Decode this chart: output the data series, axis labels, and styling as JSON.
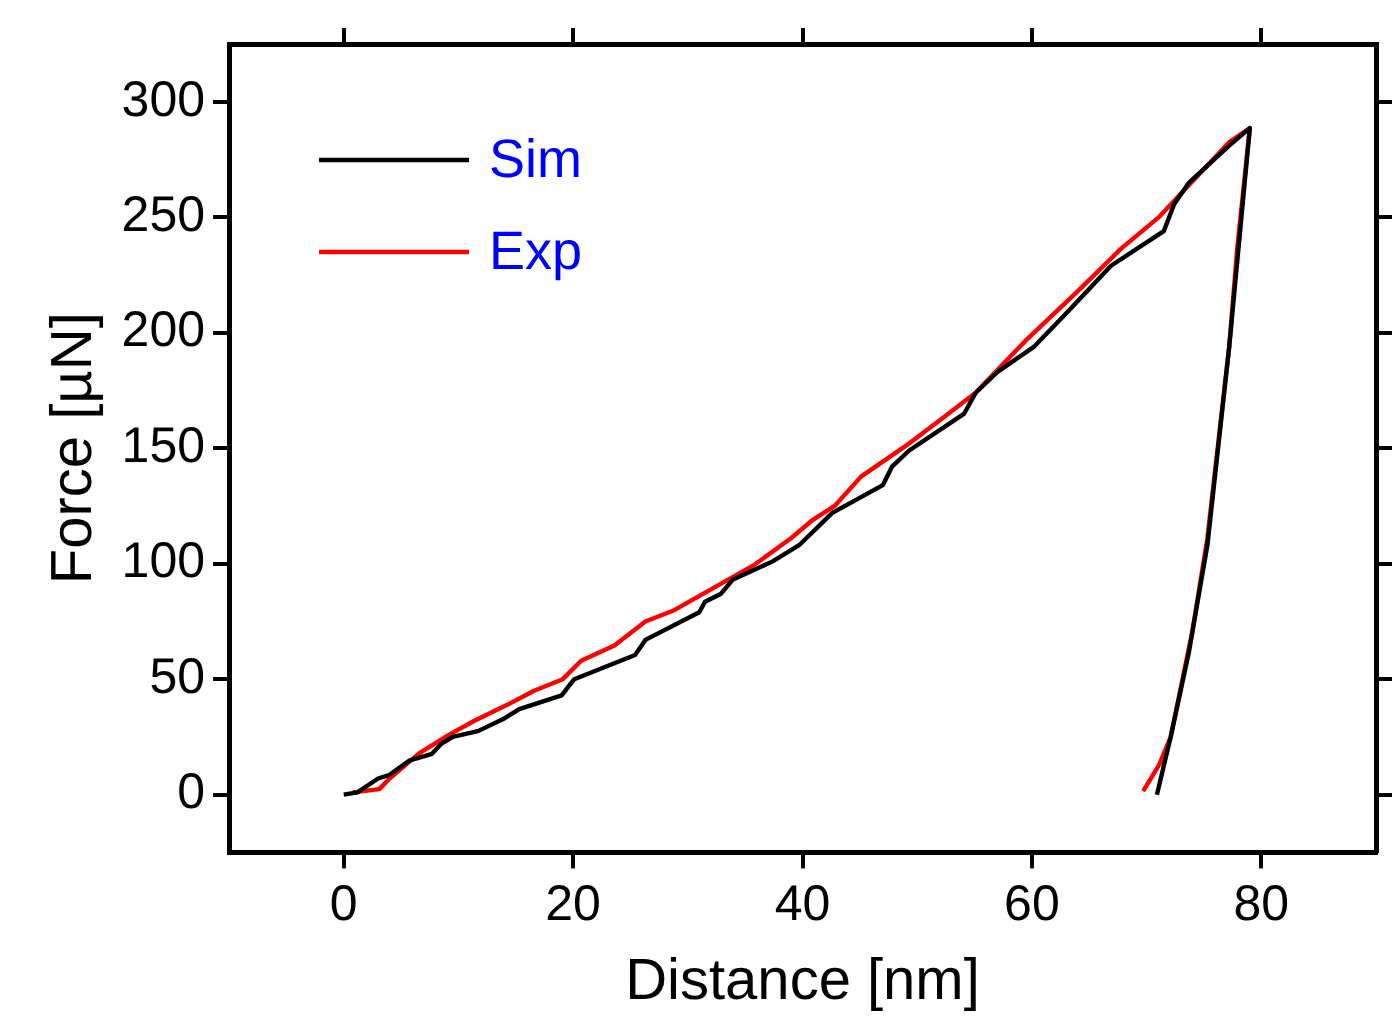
{
  "chart_data": {
    "type": "line",
    "xlabel": "Distance [nm]",
    "ylabel": "Force [µN]",
    "xlim": [
      -10,
      90
    ],
    "ylim": [
      -25,
      325
    ],
    "xticks": [
      0,
      20,
      40,
      60,
      80
    ],
    "yticks": [
      0,
      50,
      100,
      150,
      200,
      250,
      300
    ],
    "grid": false,
    "legend": "top left",
    "marker": "none",
    "line_style": "solid",
    "series": [
      {
        "name": "Sim",
        "color": "#000000",
        "x": [
          0,
          1.2,
          3,
          4,
          5.7,
          7.7,
          8.5,
          9.5,
          11.7,
          14,
          15.3,
          19,
          20.1,
          25.4,
          26.3,
          31,
          31.5,
          32.9,
          33.9,
          37.4,
          39.7,
          42.6,
          47,
          47.8,
          49.3,
          54.1,
          55.1,
          57,
          60.2,
          63.1,
          66.9,
          71.5,
          72.4,
          73.7,
          77.2,
          79,
          77.2,
          75.3,
          73.7,
          72.1,
          70.9
        ],
        "values": [
          0,
          1,
          7,
          8.6,
          14.7,
          17.7,
          22,
          25,
          27.5,
          33,
          37,
          43,
          50,
          60.5,
          67,
          79,
          83.5,
          87,
          93,
          101,
          108,
          122,
          134,
          142,
          149,
          165,
          174,
          183,
          194,
          209,
          229,
          244,
          255.6,
          265,
          281,
          288.6,
          193.8,
          108,
          62,
          25,
          0
        ]
      },
      {
        "name": "Exp",
        "color": "#ff0000",
        "x": [
          0.8,
          3.1,
          4,
          6.6,
          9.2,
          11.4,
          14.3,
          16.6,
          19.1,
          20.7,
          23.6,
          26.3,
          28.7,
          32.6,
          35.8,
          39,
          40.9,
          42.8,
          45.1,
          49,
          52.2,
          55.1,
          57.3,
          59.5,
          64,
          67.8,
          71,
          73.7,
          77.2,
          79,
          77.9,
          77.2,
          75.3,
          74,
          72.1,
          71.1,
          69.7
        ],
        "values": [
          1,
          2.4,
          7,
          18,
          26,
          32,
          39,
          45,
          50,
          58,
          64.6,
          75,
          79.6,
          90.5,
          99.5,
          111,
          119,
          125,
          137.7,
          151,
          163,
          174,
          185.5,
          196.8,
          218,
          236.5,
          249.7,
          264,
          282.5,
          288.6,
          236.5,
          193.8,
          111,
          71,
          25,
          13,
          1.5
        ]
      }
    ]
  }
}
